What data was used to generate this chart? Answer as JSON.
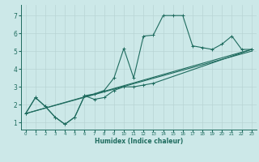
{
  "xlabel": "Humidex (Indice chaleur)",
  "bg_color": "#cce8e8",
  "line_color": "#1e6b5e",
  "grid_color": "#b8d4d4",
  "grid_minor_color": "#d0e4e4",
  "xlim": [
    -0.5,
    23.5
  ],
  "ylim": [
    0.6,
    7.6
  ],
  "xticks": [
    0,
    1,
    2,
    3,
    4,
    5,
    6,
    7,
    8,
    9,
    10,
    11,
    12,
    13,
    14,
    15,
    16,
    17,
    18,
    19,
    20,
    21,
    22,
    23
  ],
  "yticks": [
    1,
    2,
    3,
    4,
    5,
    6,
    7
  ],
  "curve1_x": [
    0,
    1,
    2,
    3,
    4,
    5,
    6,
    7,
    8,
    9,
    10,
    11,
    12,
    13,
    14,
    15,
    16,
    17,
    18,
    19,
    20,
    21,
    22,
    23
  ],
  "curve1_y": [
    1.5,
    2.4,
    1.9,
    1.3,
    0.9,
    1.3,
    2.5,
    2.6,
    2.8,
    3.5,
    5.15,
    3.5,
    5.85,
    5.9,
    7.0,
    7.0,
    7.0,
    5.3,
    5.2,
    5.1,
    5.4,
    5.85,
    5.1,
    5.1
  ],
  "curve2_x": [
    0,
    1,
    2,
    3,
    4,
    5,
    6,
    7,
    8,
    9,
    10,
    11,
    12,
    13,
    23
  ],
  "curve2_y": [
    1.5,
    2.4,
    1.9,
    1.3,
    0.9,
    1.3,
    2.5,
    2.3,
    2.4,
    2.8,
    3.0,
    3.0,
    3.1,
    3.2,
    5.1
  ],
  "line1_x": [
    0,
    23
  ],
  "line1_y": [
    1.5,
    5.1
  ],
  "line2_x": [
    0,
    23
  ],
  "line2_y": [
    1.5,
    5.0
  ]
}
